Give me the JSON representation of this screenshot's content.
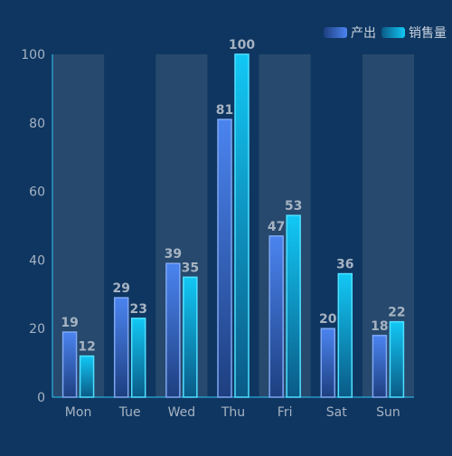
{
  "chart_data": {
    "type": "bar",
    "categories": [
      "Mon",
      "Tue",
      "Wed",
      "Thu",
      "Fri",
      "Sat",
      "Sun"
    ],
    "series": [
      {
        "name": "产出",
        "values": [
          19,
          29,
          39,
          81,
          47,
          20,
          18
        ],
        "color_top": "#4b84f0",
        "color_bottom": "#1e3f80",
        "border": "#7fa7f2"
      },
      {
        "name": "销售量",
        "values": [
          12,
          23,
          35,
          100,
          53,
          36,
          22
        ],
        "color_top": "#12c8f5",
        "color_bottom": "#0a5a86",
        "border": "#4fe0ff"
      }
    ],
    "y_ticks": [
      "0",
      "20",
      "40",
      "60",
      "80",
      "100"
    ],
    "ylim": [
      0,
      100
    ],
    "grid": false,
    "alternating_band_color": "#2a4c70",
    "axis_color": "#2fc7f5",
    "label_color": "#a6b3c2",
    "legend_position": "top-right"
  }
}
